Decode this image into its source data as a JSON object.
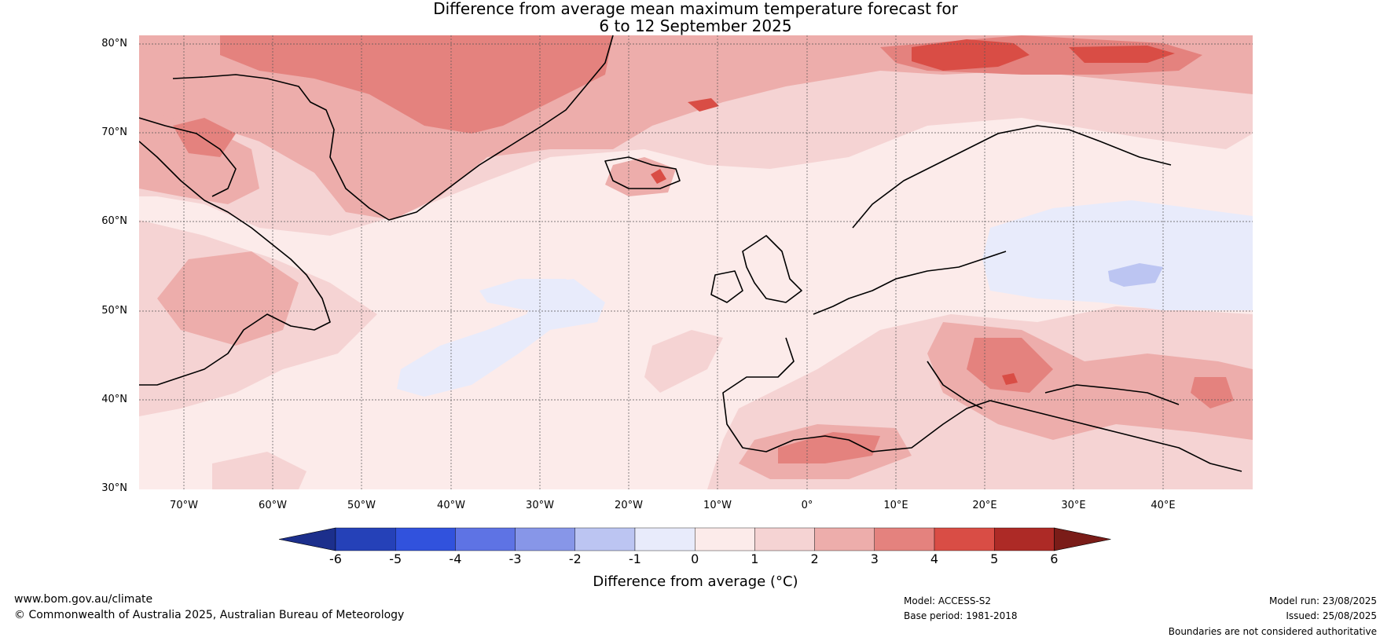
{
  "title_line1": "Difference from average mean maximum temperature forecast for",
  "title_line2": "6 to 12 September 2025",
  "map": {
    "lat_labels": [
      "80°N",
      "70°N",
      "60°N",
      "50°N",
      "40°N",
      "30°N"
    ],
    "lon_labels": [
      "70°W",
      "60°W",
      "50°W",
      "40°W",
      "30°W",
      "20°W",
      "10°W",
      "0°",
      "10°E",
      "20°E",
      "30°E",
      "40°E"
    ],
    "lat_range": [
      30,
      81
    ],
    "lon_range": [
      -75,
      50
    ]
  },
  "colorbar": {
    "label": "Difference from average (°C)",
    "ticks": [
      "-6",
      "-5",
      "-4",
      "-3",
      "-2",
      "-1",
      "0",
      "1",
      "2",
      "3",
      "4",
      "5",
      "6"
    ],
    "colors": [
      "#1c2f8c",
      "#2541b8",
      "#3152dd",
      "#5e73e4",
      "#8796e8",
      "#bcc5f2",
      "#e8ebfb",
      "#fcebea",
      "#f5d3d3",
      "#edadab",
      "#e4827e",
      "#d94d45",
      "#ad2a26",
      "#7a1c18"
    ]
  },
  "footer": {
    "website": "www.bom.gov.au/climate",
    "copyright": "© Commonwealth of Australia 2025, Australian Bureau of Meteorology",
    "model": "Model: ACCESS-S2",
    "base_period": "Base period: 1981-2018",
    "model_run": "Model run: 23/08/2025",
    "issued": "Issued: 25/08/2025",
    "disclaimer": "Boundaries are not considered authoritative"
  }
}
